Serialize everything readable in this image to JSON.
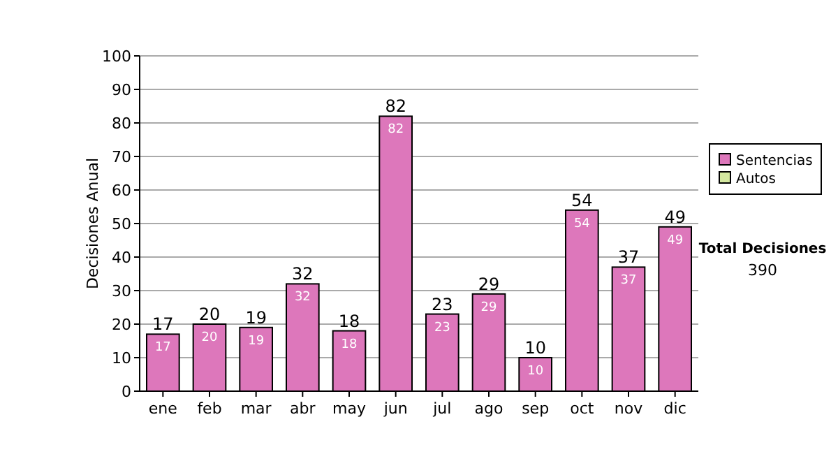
{
  "chart_data": {
    "type": "bar",
    "stacked": true,
    "ylabel": "Decisiones Anual",
    "categories": [
      "ene",
      "feb",
      "mar",
      "abr",
      "may",
      "jun",
      "jul",
      "ago",
      "sep",
      "oct",
      "nov",
      "dic"
    ],
    "series": [
      {
        "name": "Sentencias",
        "color": "#dd77bb",
        "values": [
          17,
          20,
          19,
          32,
          18,
          82,
          23,
          29,
          10,
          54,
          37,
          49
        ],
        "value_labels": [
          "17",
          "20",
          "19",
          "32",
          "18",
          "82",
          "23",
          "29",
          "10",
          "54",
          "37",
          "49"
        ]
      },
      {
        "name": "Autos",
        "color": "#d4e8a0",
        "values": [
          0,
          0,
          0,
          0,
          0,
          0,
          0,
          0,
          0,
          0,
          0,
          0
        ],
        "value_labels": [
          null,
          null,
          null,
          null,
          null,
          null,
          null,
          null,
          null,
          null,
          null,
          null
        ]
      }
    ],
    "totals": [
      "17",
      "20",
      "19",
      "32",
      "18",
      "82",
      "23",
      "29",
      "10",
      "54",
      "37",
      "49"
    ],
    "ylim": [
      0,
      100
    ],
    "yticks": [
      0,
      10,
      20,
      30,
      40,
      50,
      60,
      70,
      80,
      90,
      100
    ],
    "grid": "y",
    "legend": "right",
    "annotations": [
      "Total Decisiones",
      "390"
    ]
  }
}
